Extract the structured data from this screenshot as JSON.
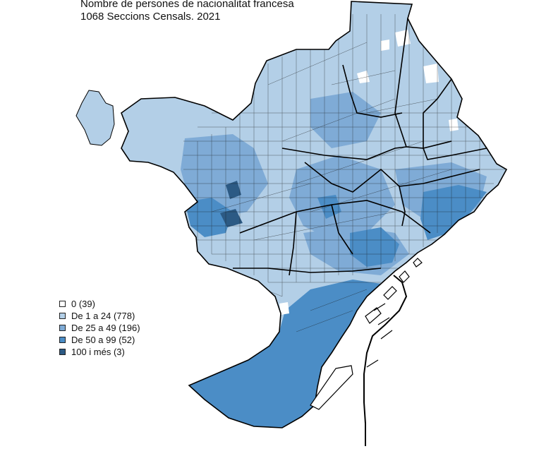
{
  "title": {
    "line1": "Nombre de persones de nacionalitat francesa",
    "line2": "1068 Seccions Censals. 2021"
  },
  "legend": [
    {
      "label": "0 (39)",
      "color": "#ffffff"
    },
    {
      "label": "De 1 a 24 (778)",
      "color": "#b3cfe7"
    },
    {
      "label": "De 25 a 49 (196)",
      "color": "#7fabd6"
    },
    {
      "label": "De 50 a 99 (52)",
      "color": "#4b8dc6"
    },
    {
      "label": "100 i més (3)",
      "color": "#2c5a84"
    }
  ],
  "colors": {
    "outline": "#000000",
    "section_line": "#1a1a1a",
    "base": "#b3cfe7",
    "mid": "#7fabd6",
    "high": "#4b8dc6",
    "top": "#2c5a84"
  }
}
